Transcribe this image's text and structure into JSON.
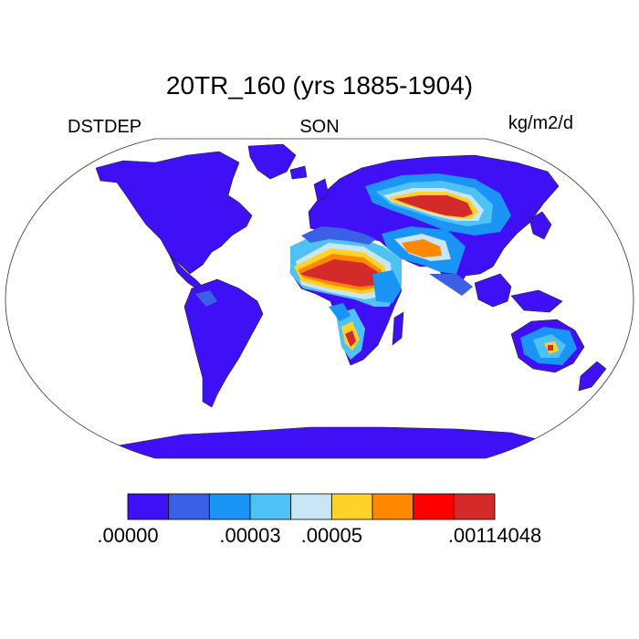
{
  "title": "20TR_160 (yrs 1885-1904)",
  "left_label": "DSTDEP",
  "center_label": "SON",
  "units": "kg/m2/d",
  "colorbar": {
    "colors": [
      "#3f10f6",
      "#3a60e6",
      "#1a95f6",
      "#4ec1f5",
      "#c8e6f6",
      "#ffd22a",
      "#ff8800",
      "#ff0000",
      "#d42a2a"
    ],
    "labels": [
      ".00000",
      ".00003",
      ".00005",
      ".00114048"
    ]
  },
  "palette": {
    "land_base": "#3f10f6",
    "coast_blue": "#3a60e6",
    "mid_blue": "#1a95f6",
    "light_blue": "#4ec1f5",
    "pale_blue": "#c8e6f6",
    "yellow": "#ffd22a",
    "orange": "#ff8800",
    "red": "#ff0000",
    "dark_red": "#d42a2a"
  }
}
